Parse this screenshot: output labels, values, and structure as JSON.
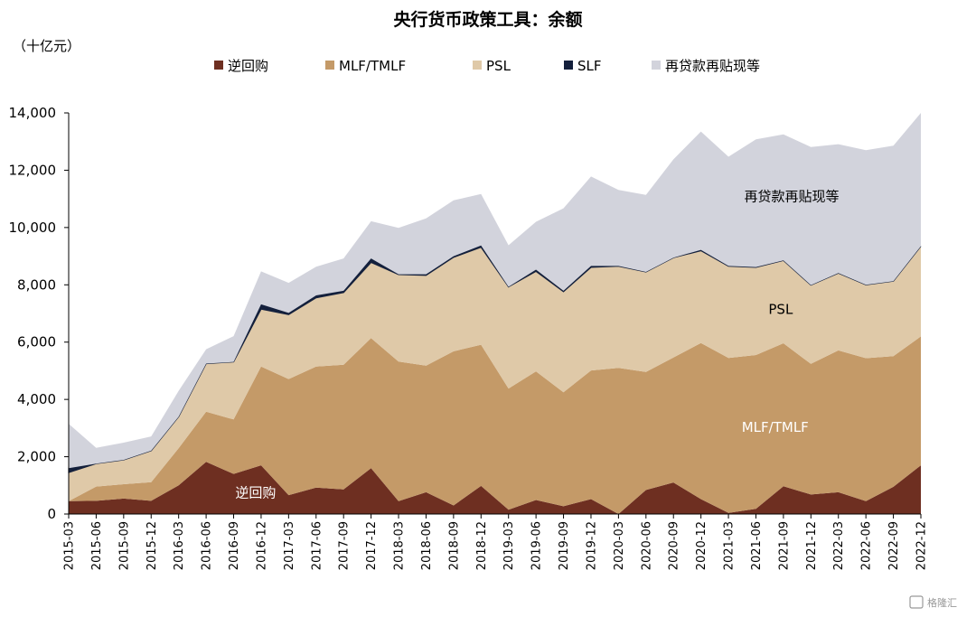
{
  "chart_data": {
    "type": "area",
    "stacked": true,
    "title": "央行货币政策工具：余额",
    "unit_label": "（十亿元）",
    "ylim": [
      0,
      14000
    ],
    "yticks": [
      0,
      2000,
      4000,
      6000,
      8000,
      10000,
      12000,
      14000
    ],
    "ytick_labels": [
      "0",
      "2,000",
      "4,000",
      "6,000",
      "8,000",
      "10,000",
      "12,000",
      "14,000"
    ],
    "grid": false,
    "legend_position": "top",
    "categories": [
      "2015-03",
      "2015-06",
      "2015-09",
      "2015-12",
      "2016-03",
      "2016-06",
      "2016-09",
      "2016-12",
      "2017-03",
      "2017-06",
      "2017-09",
      "2017-12",
      "2018-03",
      "2018-06",
      "2018-09",
      "2018-12",
      "2019-03",
      "2019-06",
      "2019-09",
      "2019-12",
      "2020-03",
      "2020-06",
      "2020-09",
      "2020-12",
      "2021-03",
      "2021-06",
      "2021-09",
      "2021-12",
      "2022-03",
      "2022-06",
      "2022-09",
      "2022-12"
    ],
    "series": [
      {
        "name": "逆回购",
        "color": "#6e2f21",
        "values": [
          450,
          460,
          540,
          460,
          1000,
          1820,
          1400,
          1700,
          660,
          920,
          860,
          1600,
          450,
          760,
          300,
          980,
          150,
          490,
          270,
          520,
          0,
          840,
          1100,
          520,
          40,
          180,
          970,
          680,
          760,
          450,
          950,
          1700
        ]
      },
      {
        "name": "MLF/TMLF",
        "color": "#c49a68",
        "values": [
          0,
          500,
          500,
          650,
          1300,
          1750,
          1900,
          3450,
          4050,
          4230,
          4350,
          4540,
          4870,
          4420,
          5380,
          4930,
          4230,
          4490,
          3980,
          4490,
          5100,
          4120,
          4360,
          5450,
          5410,
          5370,
          4990,
          4560,
          4950,
          4990,
          4560,
          4500
        ]
      },
      {
        "name": "PSL",
        "color": "#dfc9a8",
        "values": [
          1000,
          800,
          850,
          1100,
          1100,
          1680,
          2010,
          2000,
          2250,
          2400,
          2520,
          2640,
          3040,
          3150,
          3280,
          3400,
          3550,
          3490,
          3510,
          3600,
          3550,
          3490,
          3490,
          3220,
          3200,
          3060,
          2890,
          2750,
          2700,
          2560,
          2620,
          3150
        ]
      },
      {
        "name": "SLF",
        "color": "#14203c",
        "values": [
          150,
          0,
          0,
          0,
          0,
          0,
          0,
          170,
          60,
          80,
          60,
          140,
          10,
          40,
          40,
          60,
          0,
          60,
          30,
          50,
          10,
          0,
          0,
          30,
          10,
          10,
          0,
          0,
          0,
          0,
          0,
          0
        ]
      },
      {
        "name": "再贷款再贴现等",
        "color": "#d2d3dc",
        "values": [
          1550,
          550,
          600,
          500,
          900,
          500,
          900,
          1150,
          1050,
          1000,
          1130,
          1300,
          1620,
          1950,
          1950,
          1800,
          1450,
          1670,
          2880,
          3120,
          2650,
          2690,
          3430,
          4130,
          3810,
          4460,
          4400,
          4820,
          4500,
          4700,
          4730,
          4650
        ]
      }
    ],
    "area_labels": [
      {
        "series": "逆回购",
        "text": "逆回购"
      },
      {
        "series": "MLF/TMLF",
        "text": "MLF/TMLF"
      },
      {
        "series": "PSL",
        "text": "PSL"
      },
      {
        "series": "再贷款再贴现等",
        "text": "再贷款再贴现等"
      }
    ]
  },
  "watermark": "格隆汇"
}
